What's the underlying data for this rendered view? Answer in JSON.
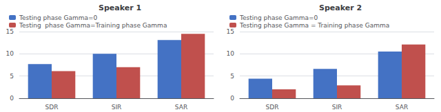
{
  "chart_data": [
    {
      "type": "bar",
      "title": "Speaker 1",
      "categories": [
        "SDR",
        "SIR",
        "SAR"
      ],
      "series": [
        {
          "name": "Testing phase Gamma=0",
          "color": "#4472C4",
          "values": [
            7.7,
            10.0,
            13.1
          ]
        },
        {
          "name": "Testing  phase Gamma=Training phase Gamma",
          "color": "#C0504D",
          "values": [
            6.1,
            7.0,
            14.5
          ]
        }
      ],
      "ylim": [
        0,
        15
      ],
      "yticks": [
        0,
        5,
        10,
        15
      ],
      "grid": true,
      "legend": "upper left"
    },
    {
      "type": "bar",
      "title": "Speaker 2",
      "categories": [
        "SDR",
        "SIR",
        "SAR"
      ],
      "series": [
        {
          "name": "Testing phase Gamma=0",
          "color": "#4472C4",
          "values": [
            4.4,
            6.6,
            10.5
          ]
        },
        {
          "name": "Testing phase Gamma = Training phase Gamma",
          "color": "#C0504D",
          "values": [
            2.0,
            2.9,
            12.1
          ]
        }
      ],
      "ylim": [
        0,
        15
      ],
      "yticks": [
        0,
        5,
        10,
        15
      ],
      "grid": true,
      "legend": "upper left"
    }
  ]
}
